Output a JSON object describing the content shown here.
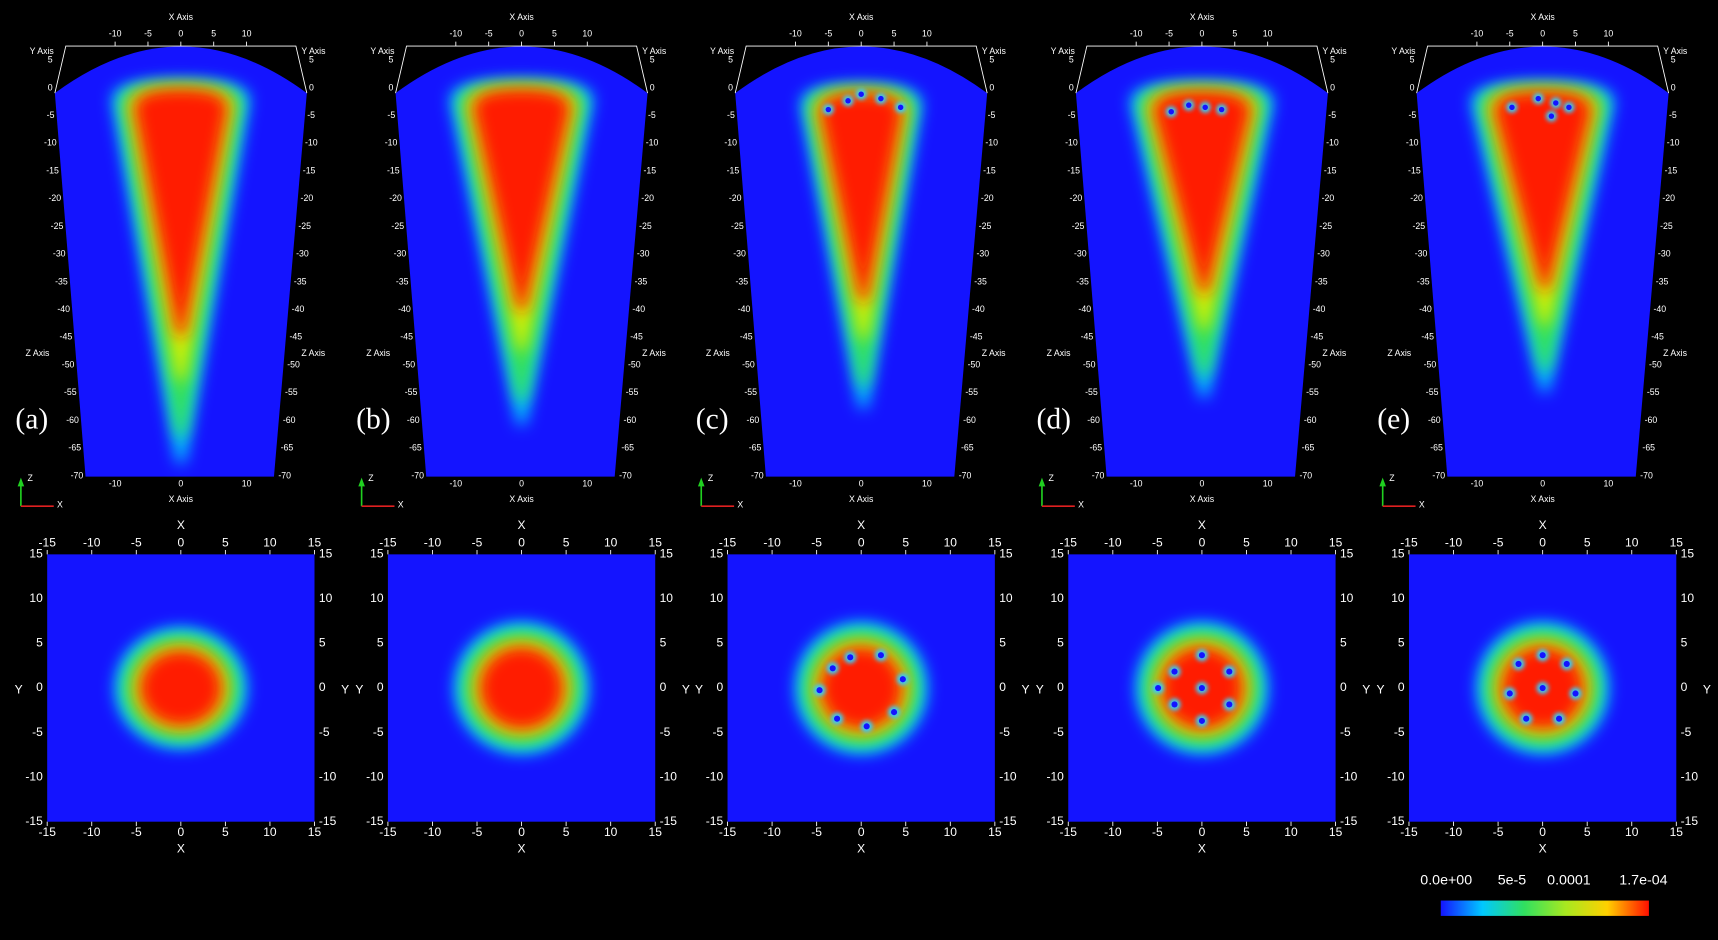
{
  "panels": [
    {
      "label": "(a)"
    },
    {
      "label": "(b)"
    },
    {
      "label": "(c)"
    },
    {
      "label": "(d)"
    },
    {
      "label": "(e)"
    }
  ],
  "top_view": {
    "x_axis_title": "X Axis",
    "y_axis_title": "Y Axis",
    "z_axis_title": "Z Axis",
    "x_ticks": [
      -10,
      -5,
      0,
      5,
      10
    ],
    "z_ticks": [
      5,
      0,
      -5,
      -10,
      -15,
      -20,
      -25,
      -30,
      -35,
      -40,
      -45,
      -50,
      -55,
      -60,
      -65,
      -70
    ]
  },
  "orientation_axes": {
    "z": "Z",
    "x": "X"
  },
  "bottom_view": {
    "x_axis_title": "X",
    "y_axis_title": "Y",
    "x_ticks": [
      -15,
      -10,
      -5,
      0,
      5,
      10,
      15
    ],
    "y_ticks": [
      15,
      10,
      5,
      0,
      -5,
      -10,
      -15
    ]
  },
  "colorbar": {
    "labels": [
      "0.0e+00",
      "5e-5",
      "0.0001",
      "1.7e-04"
    ]
  }
}
